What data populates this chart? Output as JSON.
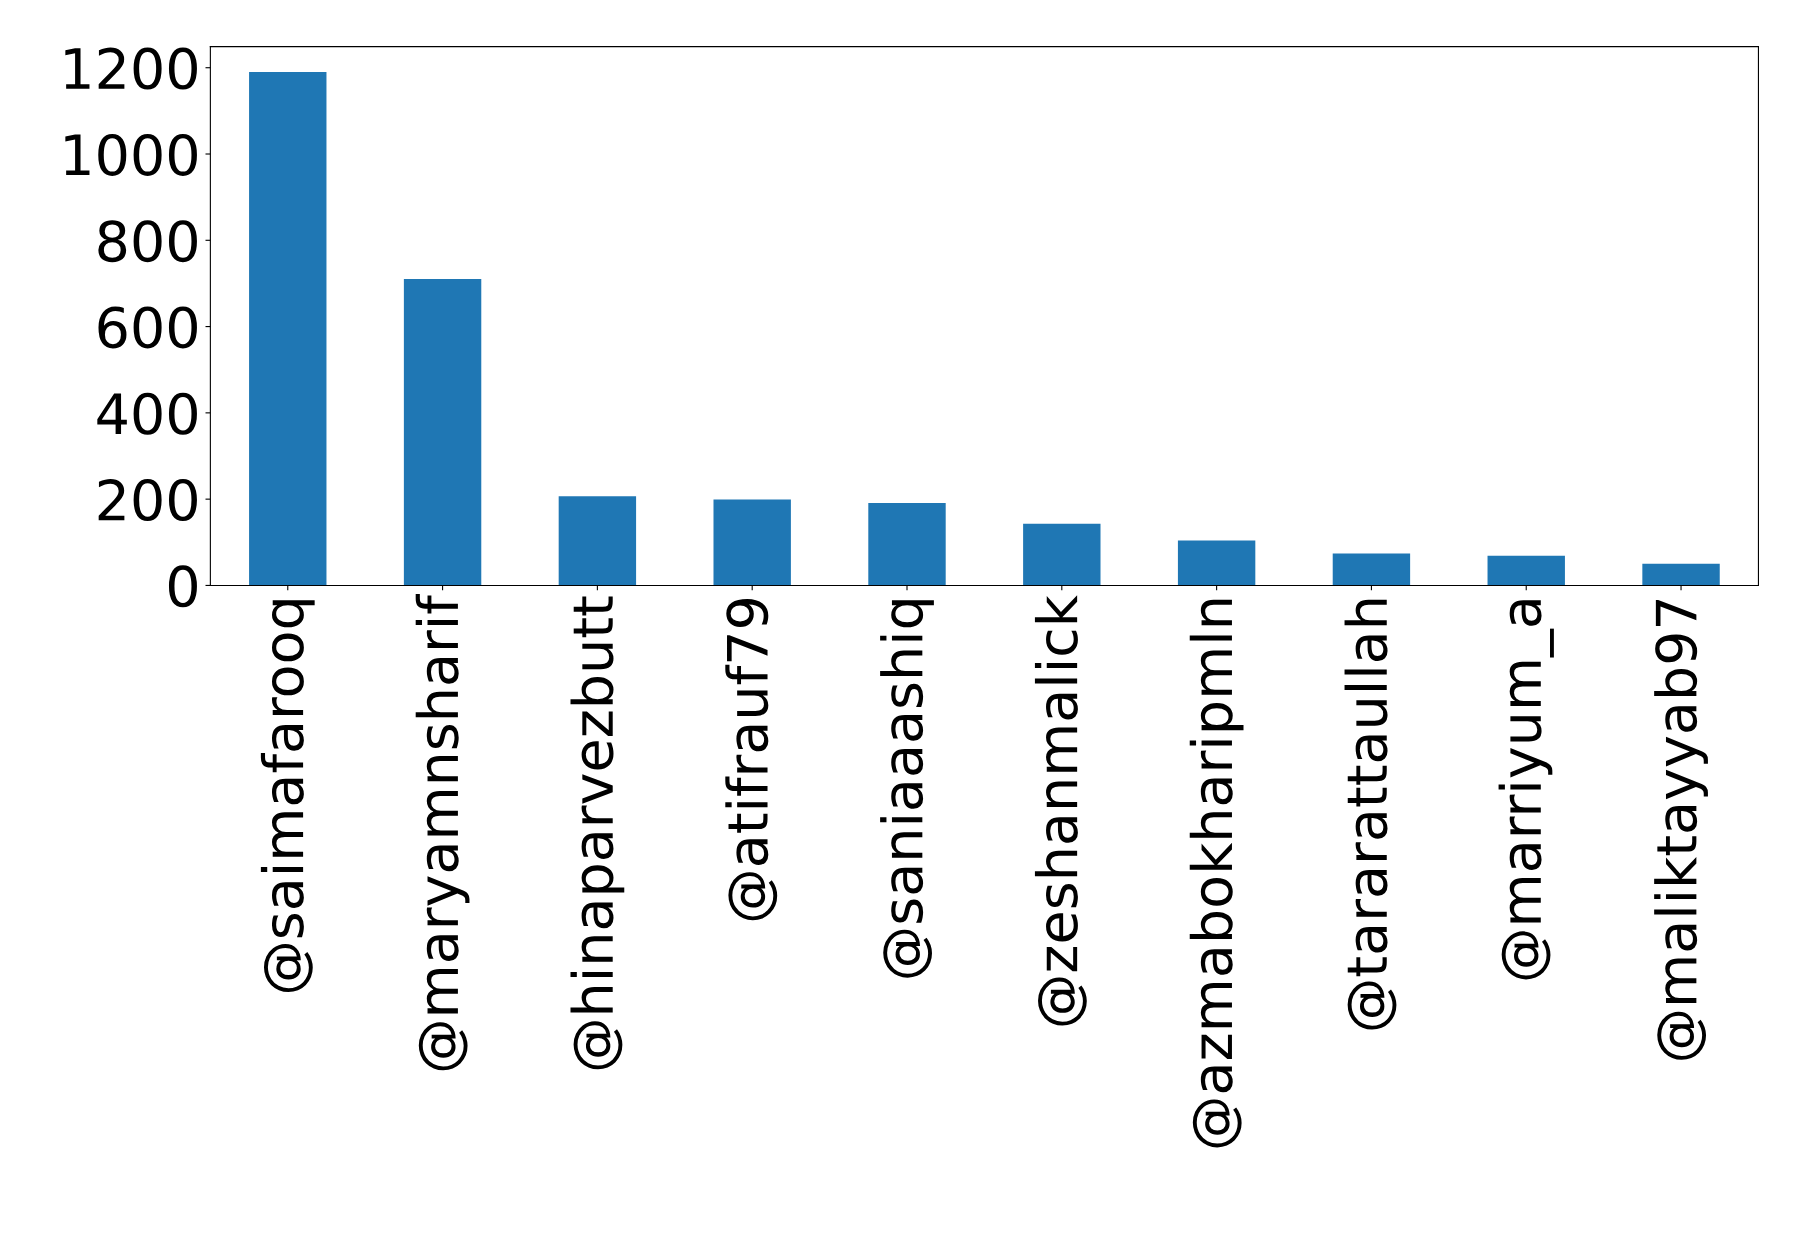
{
  "chart_data": {
    "type": "bar",
    "categories": [
      "@saimafarooq",
      "@maryamnsharif",
      "@hinaparvezbutt",
      "@atifrauf79",
      "@saniaaashiq",
      "@zeshanmalick",
      "@azmabokharipmln",
      "@tararattaullah",
      "@marriyum_a",
      "@maliktayyab97"
    ],
    "values": [
      1190,
      710,
      207,
      199,
      191,
      143,
      104,
      74,
      69,
      50
    ],
    "color": "#1f77b4",
    "ylim": [
      0,
      1249
    ],
    "yticks": [
      0,
      200,
      400,
      600,
      800,
      1000,
      1200
    ],
    "grid": false,
    "legend": false
  }
}
